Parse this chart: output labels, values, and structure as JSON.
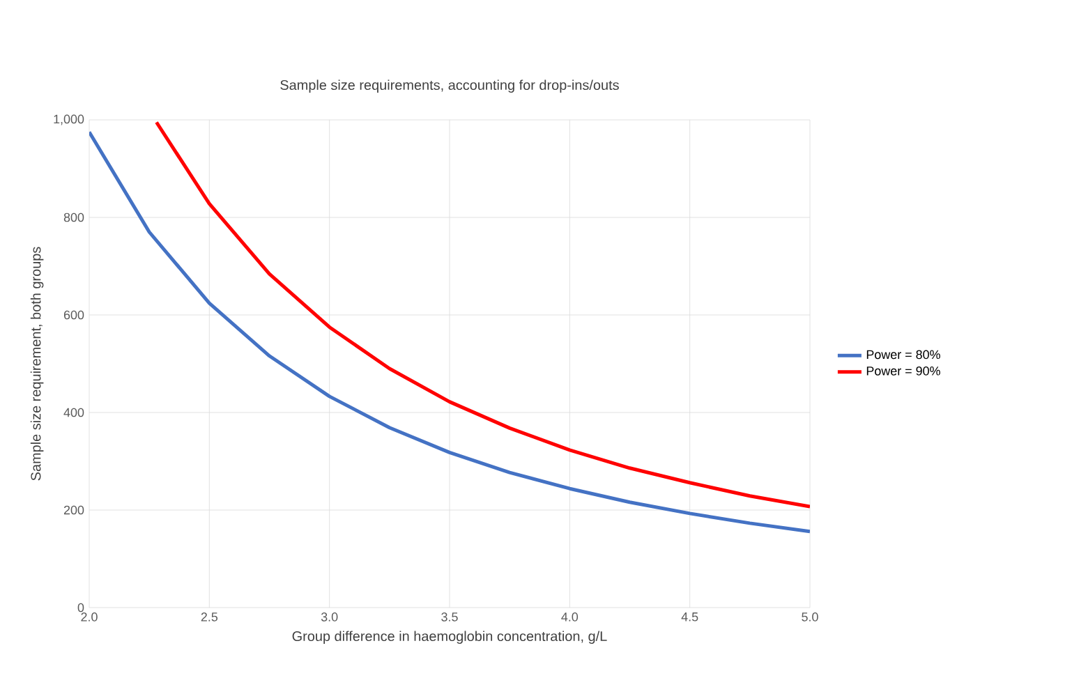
{
  "chart_data": {
    "type": "line",
    "title": "Sample size requirements, accounting for drop-ins/outs",
    "xlabel": "Group difference in haemoglobin concentration, g/L",
    "ylabel": "Sample size requirement, both groups",
    "xlim": [
      2,
      5
    ],
    "ylim": [
      0,
      1000
    ],
    "xticks": [
      {
        "value": 2,
        "label": "2.0"
      },
      {
        "value": 2.5,
        "label": "2.5"
      },
      {
        "value": 3,
        "label": "3.0"
      },
      {
        "value": 3.5,
        "label": "3.5"
      },
      {
        "value": 4,
        "label": "4.0"
      },
      {
        "value": 4.5,
        "label": "4.5"
      },
      {
        "value": 5,
        "label": "5.0"
      }
    ],
    "yticks": [
      0,
      200,
      400,
      600,
      800,
      {
        "value": 1000,
        "label": "1,000"
      }
    ],
    "grid": true,
    "legend": "right",
    "marker": "none",
    "line_style": "solid",
    "series": [
      {
        "name": "Power = 80%",
        "color": "#4472c4",
        "x": [
          2.0,
          2.25,
          2.5,
          2.75,
          3.0,
          3.25,
          3.5,
          3.75,
          4.0,
          4.25,
          4.5,
          4.75,
          5.0
        ],
        "values": [
          975,
          770,
          624,
          516,
          433,
          369,
          318,
          277,
          244,
          216,
          193,
          173,
          156
        ]
      },
      {
        "name": "Power = 90%",
        "color": "#ff0000",
        "x": [
          2.28,
          2.5,
          2.75,
          3.0,
          3.25,
          3.5,
          3.75,
          4.0,
          4.25,
          4.5,
          4.75,
          5.0
        ],
        "values": [
          995,
          828,
          684,
          575,
          490,
          422,
          368,
          323,
          286,
          256,
          229,
          207
        ]
      }
    ]
  }
}
